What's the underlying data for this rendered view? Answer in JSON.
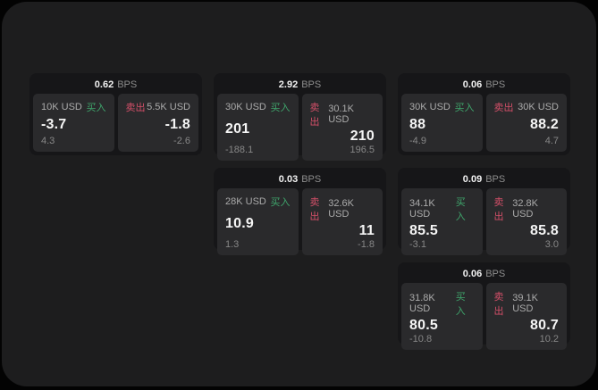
{
  "labels": {
    "bps_unit": "BPS",
    "buy": "买入",
    "sell": "卖出"
  },
  "colors": {
    "buy_green": "#3fa56c",
    "sell_red": "#d34f68",
    "panel_bg": "#1d1d1e",
    "card_bg": "#161618",
    "subcard_bg": "#2a2a2c"
  },
  "cards": [
    {
      "bps": "0.62",
      "buy": {
        "size": "10K USD",
        "value": "-3.7",
        "sub": "4.3"
      },
      "sell": {
        "size": "5.5K USD",
        "value": "-1.8",
        "sub": "-2.6"
      }
    },
    {
      "bps": "2.92",
      "buy": {
        "size": "30K USD",
        "value": "201",
        "sub": "-188.1"
      },
      "sell": {
        "size": "30.1K USD",
        "value": "210",
        "sub": "196.5"
      }
    },
    {
      "bps": "0.06",
      "buy": {
        "size": "30K USD",
        "value": "88",
        "sub": "-4.9"
      },
      "sell": {
        "size": "30K USD",
        "value": "88.2",
        "sub": "4.7"
      }
    },
    {
      "bps": "0.03",
      "buy": {
        "size": "28K USD",
        "value": "10.9",
        "sub": "1.3"
      },
      "sell": {
        "size": "32.6K USD",
        "value": "11",
        "sub": "-1.8"
      }
    },
    {
      "bps": "0.09",
      "buy": {
        "size": "34.1K USD",
        "value": "85.5",
        "sub": "-3.1"
      },
      "sell": {
        "size": "32.8K USD",
        "value": "85.8",
        "sub": "3.0"
      }
    },
    {
      "bps": "0.06",
      "buy": {
        "size": "31.8K USD",
        "value": "80.5",
        "sub": "-10.8"
      },
      "sell": {
        "size": "39.1K USD",
        "value": "80.7",
        "sub": "10.2"
      }
    }
  ]
}
